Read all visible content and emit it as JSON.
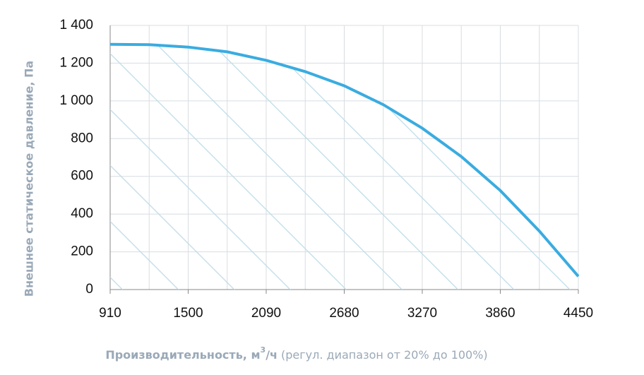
{
  "chart_data": {
    "type": "area_line",
    "y_label": "Внешнее статическое давление, Па",
    "x_label": "Производительность, м",
    "x_label_sup": "3",
    "x_label_unit": "/ч",
    "x_label_note": "(регул. диапазон от 20% до 100%)",
    "x": [
      910,
      1205,
      1500,
      1795,
      2090,
      2385,
      2680,
      2975,
      3270,
      3565,
      3860,
      4155,
      4450
    ],
    "series": [
      {
        "name": "Внешнее статическое давление",
        "color": "#3aace0",
        "values": [
          1300,
          1298,
          1285,
          1260,
          1215,
          1155,
          1080,
          980,
          855,
          705,
          525,
          310,
          70
        ]
      }
    ],
    "xlim": [
      910,
      4450
    ],
    "xticks": [
      910,
      1500,
      2090,
      2680,
      3270,
      3860,
      4450
    ],
    "ylim": [
      0,
      1400
    ],
    "yticks": [
      0,
      200,
      400,
      600,
      800,
      {
        "value": 1000,
        "label": "1 000"
      },
      {
        "value": 1200,
        "label": "1 200"
      },
      {
        "value": 1400,
        "label": "1 400"
      }
    ],
    "grid": true,
    "hatch": true
  }
}
